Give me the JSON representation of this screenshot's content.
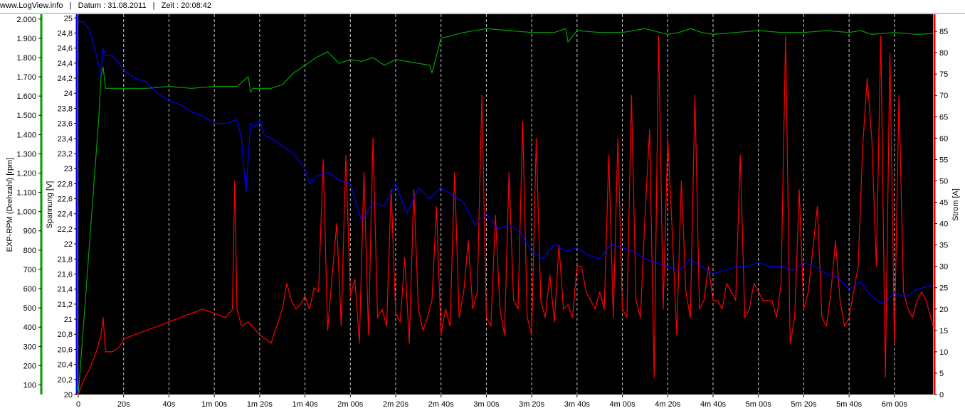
{
  "header": {
    "site": "www.LogView.info",
    "sep1": "|",
    "date": "Datum : 31.08.2011",
    "sep2": "|",
    "time": "Zeit : 20:08:42"
  },
  "colors": {
    "rpm": "#00a000",
    "voltage": "#0000ff",
    "current": "#ff0000",
    "plot_bg": "#000000",
    "grid": "#c8c8c8"
  },
  "chart_data": {
    "type": "line",
    "xlabel": "",
    "x_unit": "s",
    "xlim": [
      0,
      377
    ],
    "x_tick_labels": [
      "0",
      "20s",
      "40s",
      "1m 00s",
      "1m 20s",
      "1m 40s",
      "2m 00s",
      "2m 20s",
      "2m 40s",
      "3m 00s",
      "3m 20s",
      "3m 40s",
      "4m 00s",
      "4m 20s",
      "4m 40s",
      "5m 00s",
      "5m 20s",
      "5m 40s",
      "6m 00s"
    ],
    "grid": "vertical dashed every 20 s",
    "axes": {
      "rpm": {
        "label": "EXP-RPM (Drehzahl) [rpm]",
        "ylim": [
          50,
          2025
        ],
        "ticks": [
          "100",
          "200",
          "300",
          "400",
          "500",
          "600",
          "700",
          "800",
          "900",
          "1.000",
          "1.100",
          "1.200",
          "1.300",
          "1.400",
          "1.500",
          "1.600",
          "1.700",
          "1.800",
          "1.900",
          "2.000"
        ]
      },
      "voltage": {
        "label": "Spannung [V]",
        "ylim": [
          20,
          25.05
        ],
        "ticks": [
          "20",
          "20,2",
          "20,4",
          "20,6",
          "20,8",
          "21",
          "21,2",
          "21,4",
          "21,6",
          "21,8",
          "22",
          "22,2",
          "22,4",
          "22,6",
          "22,8",
          "23",
          "23,2",
          "23,4",
          "23,6",
          "23,8",
          "24",
          "24,2",
          "24,4",
          "24,6",
          "24,8",
          "25"
        ]
      },
      "current": {
        "label": "Strom [A]",
        "ylim": [
          0,
          89
        ],
        "ticks": [
          "0",
          "5",
          "10",
          "15",
          "20",
          "25",
          "30",
          "35",
          "40",
          "45",
          "50",
          "55",
          "60",
          "65",
          "70",
          "75",
          "80",
          "85"
        ]
      }
    },
    "series": [
      {
        "name": "EXP-RPM (Drehzahl) [rpm]",
        "axis": "rpm",
        "x": [
          0,
          3,
          6,
          9,
          10,
          11,
          12,
          15,
          20,
          30,
          40,
          50,
          60,
          70,
          75,
          76,
          77,
          80,
          85,
          90,
          95,
          100,
          105,
          110,
          115,
          120,
          125,
          130,
          135,
          140,
          145,
          150,
          155,
          156,
          160,
          170,
          180,
          190,
          200,
          210,
          215,
          216,
          220,
          230,
          240,
          250,
          260,
          265,
          270,
          275,
          280,
          290,
          300,
          310,
          320,
          330,
          340,
          345,
          350,
          360,
          370,
          377
        ],
        "values": [
          50,
          520,
          1000,
          1480,
          1700,
          1750,
          1640,
          1640,
          1640,
          1640,
          1650,
          1640,
          1650,
          1650,
          1700,
          1620,
          1640,
          1640,
          1640,
          1660,
          1720,
          1760,
          1800,
          1830,
          1770,
          1790,
          1780,
          1800,
          1760,
          1790,
          1780,
          1770,
          1760,
          1720,
          1900,
          1930,
          1950,
          1940,
          1930,
          1930,
          1950,
          1880,
          1940,
          1930,
          1930,
          1950,
          1920,
          1930,
          1950,
          1930,
          1920,
          1930,
          1940,
          1930,
          1930,
          1940,
          1930,
          1940,
          1920,
          1930,
          1920,
          1925
        ]
      },
      {
        "name": "Spannung [V]",
        "axis": "voltage",
        "x": [
          0,
          2,
          5,
          8,
          10,
          11,
          12,
          15,
          18,
          20,
          25,
          30,
          35,
          40,
          45,
          50,
          55,
          60,
          65,
          70,
          72,
          73,
          74,
          76,
          78,
          80,
          82,
          85,
          90,
          95,
          100,
          102,
          105,
          110,
          115,
          120,
          125,
          130,
          135,
          140,
          145,
          150,
          155,
          160,
          165,
          170,
          175,
          180,
          185,
          190,
          195,
          200,
          205,
          210,
          215,
          220,
          225,
          230,
          235,
          240,
          245,
          250,
          255,
          260,
          265,
          270,
          275,
          280,
          285,
          290,
          295,
          300,
          305,
          310,
          315,
          320,
          325,
          330,
          335,
          340,
          345,
          350,
          355,
          360,
          365,
          370,
          377
        ],
        "values": [
          24.95,
          24.95,
          24.85,
          24.5,
          24.25,
          24.6,
          24.5,
          24.5,
          24.4,
          24.3,
          24.2,
          24.15,
          24.0,
          23.9,
          23.85,
          23.75,
          23.7,
          23.6,
          23.6,
          23.65,
          23.4,
          23.0,
          22.7,
          23.6,
          23.55,
          23.65,
          23.45,
          23.4,
          23.3,
          23.2,
          23.0,
          22.8,
          22.9,
          22.95,
          22.85,
          22.8,
          22.3,
          22.55,
          22.5,
          22.8,
          22.4,
          22.75,
          22.6,
          22.75,
          22.65,
          22.55,
          22.25,
          22.4,
          22.2,
          22.25,
          22.15,
          21.9,
          21.8,
          22.0,
          21.9,
          21.95,
          21.85,
          21.8,
          22.0,
          21.95,
          21.9,
          21.8,
          21.75,
          21.7,
          21.65,
          21.8,
          21.7,
          21.6,
          21.65,
          21.7,
          21.7,
          21.75,
          21.7,
          21.7,
          21.65,
          21.75,
          21.7,
          21.6,
          21.55,
          21.4,
          21.5,
          21.3,
          21.2,
          21.35,
          21.3,
          21.4,
          21.45
        ]
      },
      {
        "name": "Strom [A]",
        "axis": "current",
        "x": [
          0,
          2,
          5,
          8,
          10,
          11,
          12,
          15,
          18,
          20,
          25,
          30,
          35,
          40,
          45,
          50,
          55,
          60,
          65,
          68,
          69,
          70,
          72,
          75,
          80,
          85,
          90,
          92,
          94,
          96,
          98,
          100,
          102,
          104,
          106,
          108,
          110,
          112,
          114,
          116,
          118,
          120,
          122,
          124,
          126,
          128,
          130,
          132,
          134,
          136,
          138,
          140,
          142,
          144,
          146,
          148,
          150,
          152,
          154,
          156,
          158,
          160,
          162,
          164,
          166,
          168,
          170,
          172,
          174,
          176,
          178,
          180,
          182,
          184,
          186,
          188,
          190,
          192,
          194,
          196,
          198,
          200,
          202,
          204,
          206,
          208,
          210,
          212,
          214,
          216,
          218,
          220,
          222,
          224,
          226,
          228,
          230,
          232,
          234,
          236,
          238,
          240,
          242,
          244,
          246,
          248,
          250,
          252,
          254,
          256,
          258,
          260,
          262,
          264,
          266,
          268,
          270,
          272,
          274,
          276,
          278,
          280,
          282,
          284,
          286,
          288,
          290,
          292,
          294,
          296,
          298,
          300,
          302,
          304,
          306,
          308,
          310,
          312,
          314,
          316,
          318,
          320,
          322,
          324,
          326,
          328,
          330,
          332,
          334,
          336,
          338,
          340,
          342,
          344,
          346,
          348,
          350,
          352,
          354,
          356,
          358,
          360,
          362,
          364,
          366,
          368,
          370,
          372,
          374,
          377
        ],
        "values": [
          0,
          3,
          6,
          10,
          14,
          18,
          10,
          10,
          11,
          13,
          14,
          15,
          16,
          17,
          18,
          19,
          20,
          19,
          18,
          20,
          50,
          20,
          16,
          17,
          14,
          12,
          20,
          26,
          22,
          20,
          21,
          23,
          20,
          25,
          24,
          55,
          15,
          28,
          40,
          16,
          56,
          23,
          27,
          12,
          52,
          14,
          60,
          18,
          20,
          16,
          48,
          19,
          17,
          32,
          12,
          48,
          20,
          15,
          18,
          22,
          44,
          14,
          20,
          16,
          52,
          18,
          24,
          36,
          20,
          24,
          70,
          18,
          16,
          42,
          20,
          14,
          52,
          22,
          20,
          64,
          18,
          14,
          60,
          22,
          18,
          28,
          17,
          35,
          20,
          21,
          18,
          30,
          30,
          24,
          22,
          20,
          24,
          20,
          56,
          18,
          60,
          20,
          18,
          70,
          22,
          18,
          42,
          62,
          4,
          84,
          20,
          60,
          38,
          14,
          50,
          24,
          18,
          70,
          20,
          22,
          30,
          22,
          22,
          20,
          26,
          24,
          22,
          56,
          18,
          20,
          26,
          24,
          22,
          22,
          22,
          18,
          26,
          84,
          12,
          18,
          48,
          20,
          24,
          34,
          44,
          18,
          16,
          24,
          36,
          22,
          16,
          18,
          24,
          30,
          58,
          74,
          60,
          30,
          84,
          4,
          80,
          12,
          70,
          24,
          20,
          18,
          22,
          24,
          22,
          16
        ]
      }
    ]
  }
}
